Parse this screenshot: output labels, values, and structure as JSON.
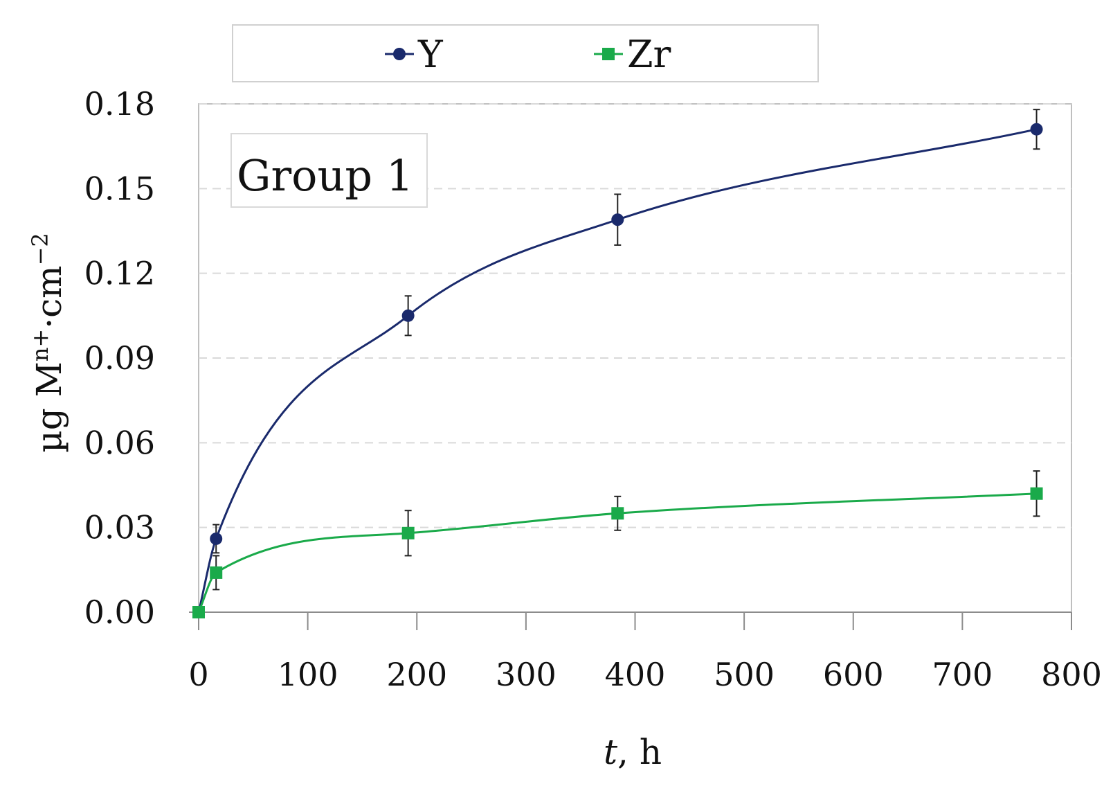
{
  "chart_data": {
    "type": "line",
    "title": "",
    "xlabel_italic": "t",
    "xlabel_rest": ", h",
    "ylabel_main": "µg M",
    "ylabel_sup1": "n+",
    "ylabel_mid": "·cm",
    "ylabel_sup2": "−2",
    "annotation": "Group 1",
    "xlim": [
      0,
      800
    ],
    "ylim": [
      0,
      0.18
    ],
    "x_ticks": [
      0,
      100,
      200,
      300,
      400,
      500,
      600,
      700,
      800
    ],
    "x_tick_labels": [
      "0",
      "100",
      "200",
      "300",
      "400",
      "500",
      "600",
      "700",
      "800"
    ],
    "y_ticks": [
      0,
      0.03,
      0.06,
      0.09,
      0.12,
      0.15,
      0.18
    ],
    "y_tick_labels": [
      "0.00",
      "0.03",
      "0.06",
      "0.09",
      "0.12",
      "0.15",
      "0.18"
    ],
    "grid": "horizontal dashed",
    "legend_position": "top",
    "x": [
      0,
      16,
      192,
      384,
      768
    ],
    "series": [
      {
        "name": "Y",
        "marker": "circle",
        "color": "#1a2a6c",
        "values": [
          0,
          0.026,
          0.105,
          0.139,
          0.171
        ],
        "errors": [
          0,
          0.005,
          0.007,
          0.009,
          0.007
        ]
      },
      {
        "name": "Zr",
        "marker": "square",
        "color": "#1aaa4a",
        "values": [
          0,
          0.014,
          0.028,
          0.035,
          0.042
        ],
        "errors": [
          0,
          0.006,
          0.008,
          0.006,
          0.008
        ]
      }
    ]
  }
}
